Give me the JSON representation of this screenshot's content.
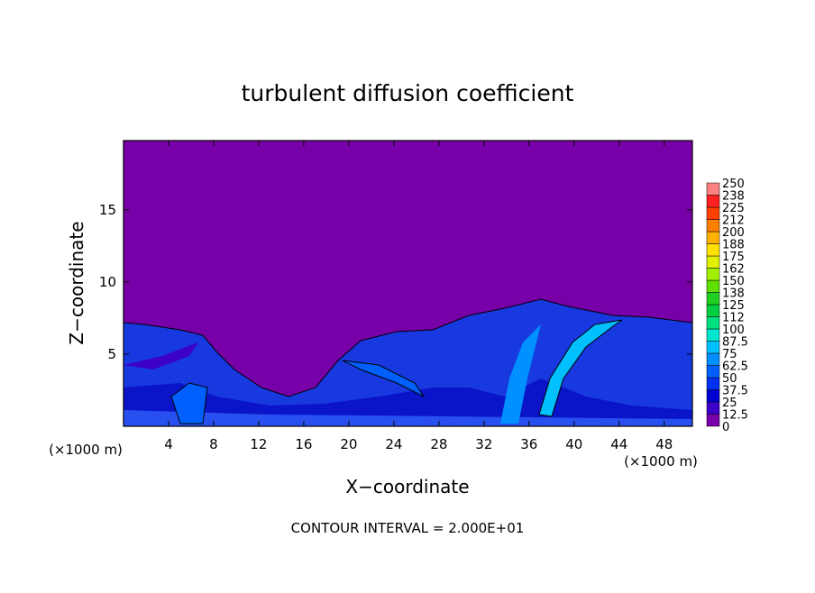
{
  "chart_data": {
    "type": "contour",
    "title": "turbulent diffusion coefficient",
    "xlabel": "X−coordinate",
    "ylabel": "Z−coordinate",
    "x_unit_labels": [
      "(×1000 m)",
      "(×1000 m)"
    ],
    "footer": "CONTOUR INTERVAL = 2.000E+01",
    "xlim": [
      0,
      50.5
    ],
    "xticks": [
      4,
      8,
      12,
      16,
      20,
      24,
      28,
      32,
      36,
      40,
      44,
      48
    ],
    "ylim": [
      0,
      19.8
    ],
    "yticks": [
      5,
      10,
      15
    ],
    "colorbar": {
      "levels": [
        0,
        12.5,
        25,
        37.5,
        50,
        62.5,
        75,
        87.5,
        100,
        112,
        125,
        138,
        150,
        162,
        175,
        188,
        200,
        212,
        225,
        238,
        250
      ],
      "colors": [
        "#7800a8",
        "#3c00c8",
        "#0000d2",
        "#0030f0",
        "#0060ff",
        "#0090ff",
        "#00c0ff",
        "#00e6d0",
        "#00e080",
        "#00d040",
        "#20d020",
        "#60e000",
        "#a0f000",
        "#e0f000",
        "#ffe000",
        "#ffb000",
        "#ff8000",
        "#ff4000",
        "#ff2020",
        "#ff8080"
      ]
    }
  }
}
